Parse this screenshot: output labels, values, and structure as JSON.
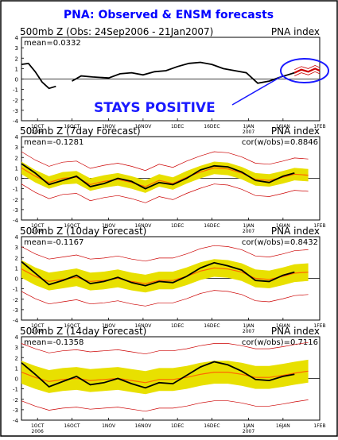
{
  "title": "PNA: Observed & ENSM forecasts",
  "annotation": "STAYS POSITIVE",
  "colors": {
    "title": "#0000ff",
    "observed": "#000000",
    "ensemble_mean": "#ff6600",
    "spread": "#e8e000",
    "extremes": "#cc0000",
    "annotation": "#1a1aff"
  },
  "x_ticks": [
    {
      "label": "1OCT",
      "year": "2006"
    },
    {
      "label": "16OCT",
      "year": ""
    },
    {
      "label": "1NOV",
      "year": ""
    },
    {
      "label": "16NOV",
      "year": ""
    },
    {
      "label": "1DEC",
      "year": ""
    },
    {
      "label": "16DEC",
      "year": ""
    },
    {
      "label": "1JAN",
      "year": "2007"
    },
    {
      "label": "16JAN",
      "year": ""
    },
    {
      "label": "1FEB",
      "year": ""
    }
  ],
  "y_ticks": [
    "4",
    "3",
    "2",
    "1",
    "0",
    "-1",
    "-2",
    "-3",
    "-4"
  ],
  "chart_data": [
    {
      "type": "line",
      "title": "500mb Z (Obs: 24Sep2006 - 21Jan2007)",
      "right_label": "PNA index",
      "mean_label": "mean=0.0332",
      "corr_label": "",
      "ylim": [
        -4,
        4
      ],
      "xlim": [
        "24Sep2006",
        "1Feb2007"
      ],
      "series": [
        {
          "role": "observed",
          "x": [
            "24Sep2006",
            "27Sep2006",
            "30Sep2006",
            "3Oct2006",
            "6Oct2006",
            "9Oct2006",
            "12Oct2006",
            "16Oct2006",
            "20Oct2006",
            "25Oct2006",
            "1Nov2006",
            "6Nov2006",
            "11Nov2006",
            "16Nov2006",
            "21Nov2006",
            "26Nov2006",
            "1Dec2006",
            "6Dec2006",
            "11Dec2006",
            "16Dec2006",
            "21Dec2006",
            "26Dec2006",
            "31Dec2006",
            "5Jan2007",
            "10Jan2007",
            "15Jan2007",
            "18Jan2007",
            "21Jan2007"
          ],
          "y": [
            1.4,
            1.5,
            0.7,
            -0.3,
            -0.9,
            -0.7,
            null,
            -0.2,
            0.3,
            0.2,
            0.1,
            0.5,
            0.6,
            0.4,
            0.7,
            0.8,
            1.2,
            1.5,
            1.6,
            1.4,
            1.0,
            0.8,
            0.6,
            -0.4,
            -0.2,
            0.2,
            0.4,
            0.6
          ]
        },
        {
          "role": "forecast",
          "x": [
            "21Jan2007",
            "24Jan2007",
            "27Jan2007",
            "30Jan2007",
            "1Feb2007"
          ],
          "y": [
            0.6,
            0.9,
            0.7,
            1.0,
            0.8
          ]
        }
      ]
    },
    {
      "type": "line",
      "title": "500mb Z (7day Forecast)",
      "right_label": "PNA index",
      "mean_label": "mean=-0.1281",
      "corr_label": "cor(w/obs)=0.8846",
      "ylim": [
        -4,
        4
      ],
      "xlim": [
        "24Sep2006",
        "1Feb2007"
      ],
      "series": [
        {
          "role": "observed",
          "x": [
            "24Sep2006",
            "30Sep2006",
            "6Oct2006",
            "12Oct2006",
            "18Oct2006",
            "24Oct2006",
            "30Oct2006",
            "5Nov2006",
            "11Nov2006",
            "17Nov2006",
            "23Nov2006",
            "29Nov2006",
            "5Dec2006",
            "11Dec2006",
            "17Dec2006",
            "23Dec2006",
            "29Dec2006",
            "4Jan2007",
            "10Jan2007",
            "16Jan2007",
            "21Jan2007"
          ],
          "y": [
            1.4,
            0.5,
            -0.6,
            -0.2,
            0.2,
            -0.8,
            -0.5,
            0.0,
            -0.3,
            -1.0,
            -0.4,
            -0.6,
            0.0,
            0.8,
            1.2,
            1.1,
            0.6,
            -0.2,
            -0.4,
            0.2,
            0.5
          ]
        },
        {
          "role": "ensemble_mean",
          "x": [
            "24Sep2006",
            "30Sep2006",
            "6Oct2006",
            "12Oct2006",
            "18Oct2006",
            "24Oct2006",
            "30Oct2006",
            "5Nov2006",
            "11Nov2006",
            "17Nov2006",
            "23Nov2006",
            "29Nov2006",
            "5Dec2006",
            "11Dec2006",
            "17Dec2006",
            "23Dec2006",
            "29Dec2006",
            "4Jan2007",
            "10Jan2007",
            "16Jan2007",
            "21Jan2007",
            "27Jan2007"
          ],
          "y": [
            1.0,
            0.2,
            -0.4,
            0.0,
            0.1,
            -0.6,
            -0.3,
            -0.1,
            -0.4,
            -0.8,
            -0.2,
            -0.5,
            0.1,
            0.6,
            1.0,
            0.9,
            0.5,
            -0.1,
            -0.2,
            0.1,
            0.4,
            0.3
          ]
        }
      ]
    },
    {
      "type": "line",
      "title": "500mb Z (10day Forecast)",
      "right_label": "PNA index",
      "mean_label": "mean=-0.1167",
      "corr_label": "cor(w/obs)=0.8432",
      "ylim": [
        -4,
        4
      ],
      "xlim": [
        "24Sep2006",
        "1Feb2007"
      ],
      "series": [
        {
          "role": "observed",
          "x": [
            "24Sep2006",
            "30Sep2006",
            "6Oct2006",
            "12Oct2006",
            "18Oct2006",
            "24Oct2006",
            "30Oct2006",
            "5Nov2006",
            "11Nov2006",
            "17Nov2006",
            "23Nov2006",
            "29Nov2006",
            "5Dec2006",
            "11Dec2006",
            "17Dec2006",
            "23Dec2006",
            "29Dec2006",
            "4Jan2007",
            "10Jan2007",
            "16Jan2007",
            "21Jan2007"
          ],
          "y": [
            1.6,
            0.5,
            -0.6,
            -0.2,
            0.3,
            -0.5,
            -0.3,
            0.1,
            -0.4,
            -0.7,
            -0.3,
            -0.4,
            0.2,
            1.0,
            1.5,
            1.2,
            0.8,
            -0.2,
            -0.3,
            0.3,
            0.6
          ]
        },
        {
          "role": "ensemble_mean",
          "x": [
            "24Sep2006",
            "30Sep2006",
            "6Oct2006",
            "12Oct2006",
            "18Oct2006",
            "24Oct2006",
            "30Oct2006",
            "5Nov2006",
            "11Nov2006",
            "17Nov2006",
            "23Nov2006",
            "29Nov2006",
            "5Dec2006",
            "11Dec2006",
            "17Dec2006",
            "23Dec2006",
            "29Dec2006",
            "4Jan2007",
            "10Jan2007",
            "16Jan2007",
            "21Jan2007",
            "27Jan2007"
          ],
          "y": [
            0.9,
            0.2,
            -0.3,
            -0.1,
            0.1,
            -0.3,
            -0.2,
            0.0,
            -0.3,
            -0.5,
            -0.2,
            -0.2,
            0.2,
            0.7,
            1.0,
            0.9,
            0.6,
            0.0,
            -0.1,
            0.2,
            0.5,
            0.6
          ]
        }
      ]
    },
    {
      "type": "line",
      "title": "500mb Z (14day Forecast)",
      "right_label": "PNA index",
      "mean_label": "mean=-0.1358",
      "corr_label": "cor(w/obs)=0.7116",
      "ylim": [
        -4,
        4
      ],
      "xlim": [
        "24Sep2006",
        "1Feb2007"
      ],
      "series": [
        {
          "role": "observed",
          "x": [
            "24Sep2006",
            "30Sep2006",
            "6Oct2006",
            "12Oct2006",
            "18Oct2006",
            "24Oct2006",
            "30Oct2006",
            "5Nov2006",
            "11Nov2006",
            "17Nov2006",
            "23Nov2006",
            "29Nov2006",
            "5Dec2006",
            "11Dec2006",
            "17Dec2006",
            "23Dec2006",
            "29Dec2006",
            "4Jan2007",
            "10Jan2007",
            "16Jan2007",
            "21Jan2007"
          ],
          "y": [
            1.5,
            0.4,
            -0.8,
            -0.3,
            0.2,
            -0.6,
            -0.4,
            0.0,
            -0.5,
            -0.9,
            -0.4,
            -0.5,
            0.3,
            1.1,
            1.6,
            1.3,
            0.7,
            -0.1,
            -0.2,
            0.2,
            0.4
          ]
        },
        {
          "role": "ensemble_mean",
          "x": [
            "24Sep2006",
            "30Sep2006",
            "6Oct2006",
            "12Oct2006",
            "18Oct2006",
            "24Oct2006",
            "30Oct2006",
            "5Nov2006",
            "11Nov2006",
            "17Nov2006",
            "23Nov2006",
            "29Nov2006",
            "5Dec2006",
            "11Dec2006",
            "17Dec2006",
            "23Dec2006",
            "29Dec2006",
            "4Jan2007",
            "10Jan2007",
            "16Jan2007",
            "21Jan2007",
            "27Jan2007"
          ],
          "y": [
            0.6,
            0.1,
            -0.3,
            -0.1,
            0.0,
            -0.2,
            -0.1,
            0.0,
            -0.2,
            -0.4,
            -0.1,
            -0.1,
            0.1,
            0.4,
            0.6,
            0.6,
            0.4,
            0.1,
            0.1,
            0.3,
            0.5,
            0.7
          ]
        }
      ]
    }
  ]
}
